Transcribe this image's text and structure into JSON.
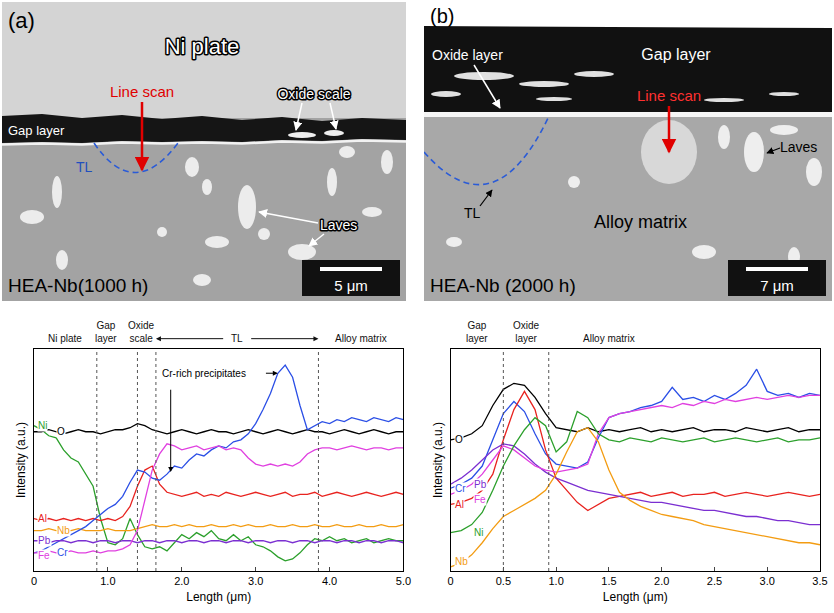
{
  "micrographs": [
    {
      "panel": "(a)",
      "caption": "HEA-Nb(1000 h)",
      "scale_bar": "5 μm",
      "labels": {
        "plate": "Ni plate",
        "gap": "Gap layer",
        "oxide": "Oxide scale",
        "line_scan": "Line scan",
        "tl": "TL",
        "laves": "Laves"
      }
    },
    {
      "panel": "(b)",
      "caption": "HEA-Nb (2000 h)",
      "scale_bar": "7 μm",
      "labels": {
        "gap": "Gap layer",
        "oxide": "Oxide layer",
        "line_scan": "Line scan",
        "tl": "TL",
        "matrix": "Alloy matrix",
        "laves": "Laves"
      }
    }
  ],
  "chart_data": [
    {
      "type": "line",
      "xlabel": "Length (μm)",
      "ylabel": "Intensity (a.u.)",
      "xlim": [
        0,
        5
      ],
      "ylim": [
        0,
        11
      ],
      "xticks": [
        0,
        {
          "value": 1,
          "label": "1.0"
        },
        {
          "value": 2,
          "label": "2.0"
        },
        {
          "value": 3,
          "label": "3.0"
        },
        {
          "value": 4,
          "label": "4.0"
        },
        {
          "value": 5,
          "label": "5.0"
        }
      ],
      "tick_labels": "x",
      "grid": false,
      "boundaries": [
        0.85,
        1.4,
        1.65,
        3.85
      ],
      "annotations": [
        {
          "text": "Ni plate",
          "x": 0.42
        },
        {
          "text": "Gap layer",
          "x": 0.98
        },
        {
          "text": "Oxide scale",
          "x": 1.45
        },
        {
          "text": "TL",
          "x": 2.75,
          "span": [
            1.65,
            3.85
          ]
        },
        {
          "text": "Alloy matrix",
          "x": 4.42
        },
        {
          "text": "Cr-rich precipitates",
          "x": 2.3,
          "y": 9.8,
          "points": [
            [
              1.85,
              4.9
            ],
            [
              3.3,
              9.8
            ]
          ]
        }
      ],
      "x": [
        0,
        0.1,
        0.2,
        0.3,
        0.4,
        0.5,
        0.6,
        0.7,
        0.8,
        0.9,
        1.0,
        1.1,
        1.2,
        1.3,
        1.4,
        1.5,
        1.6,
        1.7,
        1.8,
        1.9,
        2.0,
        2.1,
        2.2,
        2.3,
        2.4,
        2.5,
        2.6,
        2.7,
        2.8,
        2.9,
        3.0,
        3.1,
        3.2,
        3.3,
        3.4,
        3.5,
        3.6,
        3.7,
        3.8,
        3.9,
        4.0,
        4.1,
        4.2,
        4.3,
        4.4,
        4.5,
        4.6,
        4.7,
        4.8,
        4.9,
        5.0
      ],
      "series": [
        {
          "name": "Ni",
          "color": "#2ca02c",
          "values": [
            7.2,
            7.0,
            6.7,
            6.6,
            6.0,
            5.6,
            5.4,
            4.8,
            4.2,
            2.6,
            1.4,
            1.3,
            1.6,
            2.6,
            1.8,
            1.2,
            1.1,
            1.2,
            1.0,
            1.4,
            1.8,
            1.6,
            1.9,
            1.7,
            2.0,
            1.6,
            1.5,
            1.8,
            1.5,
            1.7,
            1.3,
            1.2,
            1.0,
            0.7,
            0.5,
            0.6,
            0.9,
            1.3,
            1.6,
            1.5,
            1.7,
            1.5,
            1.6,
            1.4,
            1.5,
            1.6,
            1.4,
            1.5,
            1.6,
            1.5,
            1.5
          ]
        },
        {
          "name": "O",
          "color": "#000000",
          "values": [
            6.9,
            6.9,
            7.0,
            6.9,
            6.8,
            6.9,
            7.0,
            6.9,
            6.9,
            6.8,
            6.9,
            7.0,
            7.0,
            7.1,
            7.3,
            7.2,
            7.0,
            6.9,
            6.8,
            6.9,
            7.0,
            6.9,
            6.8,
            6.9,
            7.0,
            6.9,
            6.9,
            6.8,
            6.9,
            7.0,
            6.9,
            6.8,
            6.9,
            7.0,
            6.9,
            6.8,
            6.9,
            7.0,
            6.9,
            6.9,
            6.8,
            6.9,
            7.0,
            6.9,
            6.8,
            6.9,
            7.0,
            6.9,
            6.8,
            6.9,
            6.9
          ]
        },
        {
          "name": "Al",
          "color": "#e8231f",
          "values": [
            2.6,
            2.5,
            2.6,
            2.5,
            2.6,
            2.5,
            2.6,
            2.5,
            2.6,
            2.5,
            2.6,
            2.5,
            2.7,
            3.2,
            4.2,
            5.0,
            5.2,
            4.3,
            3.9,
            3.8,
            3.7,
            3.8,
            3.9,
            3.7,
            3.8,
            3.7,
            3.9,
            3.8,
            3.7,
            3.8,
            3.9,
            3.8,
            3.7,
            3.8,
            3.9,
            3.7,
            3.8,
            3.8,
            3.9,
            3.7,
            3.8,
            3.9,
            3.8,
            3.7,
            3.8,
            3.9,
            3.8,
            3.7,
            3.8,
            3.9,
            3.8
          ]
        },
        {
          "name": "Nb",
          "color": "#f39c12",
          "values": [
            2.0,
            2.0,
            2.1,
            2.0,
            2.0,
            2.0,
            2.1,
            2.0,
            2.0,
            2.0,
            2.1,
            2.0,
            2.0,
            2.0,
            2.1,
            2.2,
            2.3,
            2.2,
            2.2,
            2.3,
            2.2,
            2.3,
            2.2,
            2.2,
            2.3,
            2.2,
            2.2,
            2.3,
            2.2,
            2.3,
            2.2,
            2.2,
            2.3,
            2.2,
            2.2,
            2.3,
            2.2,
            2.2,
            2.3,
            2.2,
            2.2,
            2.3,
            2.2,
            2.2,
            2.3,
            2.2,
            2.2,
            2.3,
            2.2,
            2.2,
            2.3
          ]
        },
        {
          "name": "Cr",
          "color": "#2b4fe6",
          "values": [
            0.9,
            1.0,
            1.2,
            1.4,
            1.6,
            1.8,
            2.0,
            2.2,
            2.5,
            2.8,
            3.1,
            3.3,
            3.7,
            4.4,
            5.0,
            4.9,
            4.6,
            4.5,
            4.8,
            5.2,
            5.1,
            5.5,
            5.8,
            5.7,
            6.0,
            6.2,
            6.1,
            6.4,
            6.5,
            6.8,
            7.3,
            8.0,
            8.8,
            9.8,
            10.2,
            9.6,
            8.2,
            7.0,
            7.2,
            7.4,
            7.3,
            7.5,
            7.4,
            7.6,
            7.5,
            7.4,
            7.6,
            7.5,
            7.4,
            7.6,
            7.5
          ]
        },
        {
          "name": "Pb",
          "color": "#7b2fd1",
          "values": [
            1.5,
            1.5,
            1.4,
            1.5,
            1.5,
            1.4,
            1.5,
            1.5,
            1.4,
            1.5,
            1.5,
            1.4,
            1.5,
            1.5,
            1.4,
            1.5,
            1.5,
            1.4,
            1.5,
            1.5,
            1.4,
            1.5,
            1.5,
            1.4,
            1.5,
            1.5,
            1.4,
            1.5,
            1.5,
            1.4,
            1.5,
            1.5,
            1.4,
            1.5,
            1.5,
            1.4,
            1.5,
            1.5,
            1.4,
            1.5,
            1.5,
            1.4,
            1.5,
            1.5,
            1.4,
            1.5,
            1.5,
            1.4,
            1.5,
            1.5,
            1.4
          ]
        },
        {
          "name": "Fe",
          "color": "#e040e0",
          "values": [
            0.9,
            0.9,
            1.0,
            0.9,
            0.9,
            1.0,
            0.9,
            0.9,
            1.0,
            0.9,
            1.0,
            1.0,
            1.1,
            1.3,
            2.0,
            3.5,
            5.0,
            5.8,
            6.3,
            6.2,
            6.0,
            6.1,
            6.2,
            6.0,
            6.1,
            6.2,
            6.0,
            6.1,
            6.0,
            5.6,
            5.3,
            5.2,
            5.3,
            5.2,
            5.3,
            5.2,
            5.4,
            5.8,
            6.0,
            6.1,
            6.1,
            6.0,
            6.1,
            6.2,
            6.1,
            6.0,
            6.1,
            6.1,
            6.0,
            6.1,
            6.1
          ]
        }
      ]
    },
    {
      "type": "line",
      "xlabel": "Length (μm)",
      "ylabel": "Intensity (a.u.)",
      "xlim": [
        0,
        3.5
      ],
      "ylim": [
        0,
        11
      ],
      "xticks": [
        0,
        0.5,
        {
          "value": 1,
          "label": "1.0"
        },
        1.5,
        {
          "value": 2,
          "label": "2.0"
        },
        2.5,
        {
          "value": 3,
          "label": "3.0"
        },
        3.5
      ],
      "tick_labels": "x",
      "grid": false,
      "boundaries": [
        0.5,
        0.93
      ],
      "annotations": [
        {
          "text": "Gap layer",
          "x": 0.25
        },
        {
          "text": "Oxide layer",
          "x": 0.72
        },
        {
          "text": "Alloy matrix",
          "x": 1.5
        }
      ],
      "x": [
        0,
        0.1,
        0.2,
        0.3,
        0.4,
        0.5,
        0.6,
        0.7,
        0.8,
        0.9,
        1.0,
        1.1,
        1.2,
        1.3,
        1.4,
        1.5,
        1.6,
        1.7,
        1.8,
        1.9,
        2.0,
        2.1,
        2.2,
        2.3,
        2.4,
        2.5,
        2.6,
        2.7,
        2.8,
        2.9,
        3.0,
        3.1,
        3.2,
        3.3,
        3.4,
        3.5
      ],
      "series": [
        {
          "name": "O",
          "color": "#000000",
          "values": [
            6.5,
            6.6,
            6.8,
            7.2,
            8.2,
            9.0,
            9.3,
            9.2,
            8.6,
            7.8,
            7.1,
            7.0,
            6.9,
            7.1,
            6.9,
            7.0,
            6.9,
            7.0,
            7.1,
            6.9,
            7.0,
            6.9,
            7.0,
            7.1,
            6.9,
            7.0,
            7.0,
            6.9,
            7.1,
            7.0,
            6.9,
            7.0,
            7.1,
            6.9,
            7.0,
            7.0
          ]
        },
        {
          "name": "Cr",
          "color": "#2b4fe6",
          "values": [
            4.1,
            4.3,
            4.6,
            5.2,
            6.5,
            7.8,
            8.4,
            7.9,
            6.8,
            5.8,
            5.3,
            5.2,
            5.1,
            5.4,
            6.6,
            7.6,
            7.8,
            7.9,
            8.1,
            8.2,
            8.4,
            9.1,
            8.5,
            8.6,
            8.4,
            8.7,
            8.5,
            8.8,
            9.2,
            10.0,
            8.9,
            8.7,
            8.8,
            8.6,
            8.8,
            8.7
          ]
        },
        {
          "name": "Al",
          "color": "#e8231f",
          "values": [
            3.3,
            3.4,
            3.6,
            4.0,
            4.8,
            6.5,
            8.0,
            8.9,
            8.0,
            6.0,
            4.6,
            4.0,
            3.4,
            3.0,
            3.3,
            3.6,
            3.7,
            3.8,
            3.9,
            3.7,
            3.8,
            3.9,
            3.7,
            3.8,
            3.8,
            3.9,
            3.7,
            3.8,
            3.9,
            3.8,
            3.7,
            3.8,
            3.9,
            3.8,
            3.7,
            3.8
          ]
        },
        {
          "name": "Pb",
          "color": "#7b2fd1",
          "values": [
            4.3,
            4.6,
            5.0,
            5.5,
            6.0,
            6.3,
            6.2,
            5.8,
            5.3,
            4.9,
            4.6,
            4.4,
            4.2,
            4.0,
            3.9,
            3.8,
            3.7,
            3.6,
            3.5,
            3.4,
            3.4,
            3.3,
            3.2,
            3.1,
            3.0,
            3.0,
            2.9,
            2.8,
            2.7,
            2.7,
            2.6,
            2.5,
            2.5,
            2.4,
            2.3,
            2.3
          ]
        },
        {
          "name": "Fe",
          "color": "#e040e0",
          "values": [
            3.8,
            4.0,
            4.3,
            4.8,
            5.5,
            6.2,
            6.0,
            5.6,
            5.2,
            5.0,
            4.9,
            5.0,
            5.1,
            5.3,
            6.8,
            7.6,
            7.8,
            7.9,
            8.0,
            8.1,
            8.2,
            8.1,
            8.3,
            8.2,
            8.4,
            8.3,
            8.5,
            8.4,
            8.5,
            8.6,
            8.5,
            8.6,
            8.7,
            8.6,
            8.7,
            8.7
          ]
        },
        {
          "name": "Ni",
          "color": "#2ca02c",
          "values": [
            1.9,
            2.0,
            2.3,
            2.9,
            4.0,
            5.2,
            6.2,
            7.0,
            7.6,
            7.2,
            5.9,
            6.4,
            7.9,
            7.6,
            6.8,
            6.5,
            6.4,
            6.6,
            6.5,
            6.4,
            6.6,
            6.5,
            6.4,
            6.5,
            6.6,
            6.4,
            6.5,
            6.6,
            6.5,
            6.4,
            6.5,
            6.6,
            6.4,
            6.5,
            6.5,
            6.6
          ]
        },
        {
          "name": "Nb",
          "color": "#f39c12",
          "values": [
            0.2,
            0.4,
            0.8,
            1.4,
            2.1,
            2.7,
            3.0,
            3.3,
            3.6,
            4.0,
            4.8,
            5.9,
            6.9,
            7.1,
            6.4,
            5.0,
            3.9,
            3.5,
            3.2,
            3.0,
            2.8,
            2.7,
            2.6,
            2.5,
            2.3,
            2.2,
            2.1,
            2.0,
            1.9,
            1.8,
            1.7,
            1.6,
            1.5,
            1.4,
            1.4,
            1.3
          ]
        }
      ]
    }
  ]
}
